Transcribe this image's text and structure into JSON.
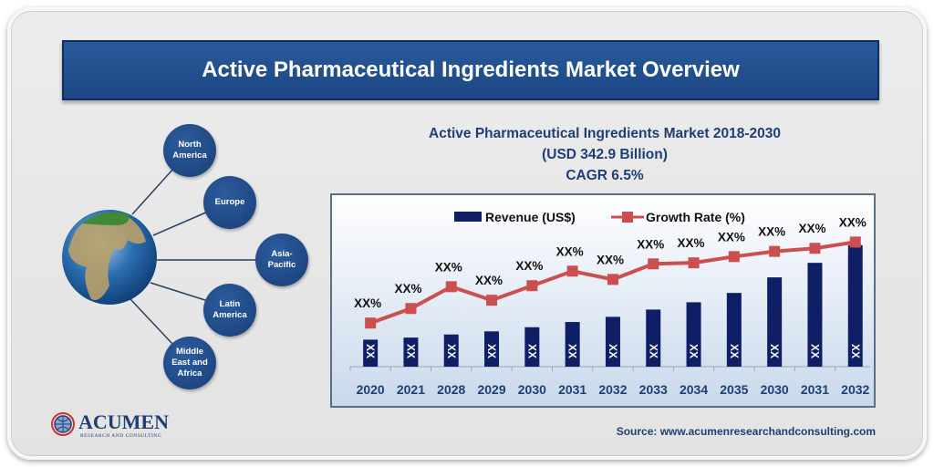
{
  "banner_title": "Active Pharmaceutical Ingredients Market Overview",
  "chart_heading": {
    "line1": "Active Pharmaceutical Ingredients Market 2018-2030",
    "line2": "(USD 342.9 Billion)",
    "line3": "CAGR 6.5%"
  },
  "regions": [
    "North America",
    "Europe",
    "Asia-Pacific",
    "Latin America",
    "Middle East and Africa"
  ],
  "logo": {
    "name": "ACUMEN",
    "tagline": "RESEARCH AND CONSULTING"
  },
  "source": "Source: www.acumenresearchandconsulting.com",
  "colors": {
    "bar": "#0f1f66",
    "line": "#cc4f4f",
    "banner": "#1f4e8c",
    "text": "#1f3f73"
  },
  "chart_data": {
    "type": "bar+line",
    "categories": [
      "2020",
      "2021",
      "2028",
      "2029",
      "2030",
      "2031",
      "2032",
      "2033",
      "2034",
      "2035",
      "2030",
      "2031",
      "2032"
    ],
    "series": [
      {
        "name": "Revenue (US$)",
        "type": "bar",
        "values": [
          26,
          28,
          31,
          34,
          38,
          43,
          48,
          55,
          62,
          71,
          86,
          100,
          117
        ],
        "labels": [
          "XX",
          "XX",
          "XX",
          "XX",
          "XX",
          "XX",
          "XX",
          "XX",
          "XX",
          "XX",
          "XX",
          "XX",
          "XX"
        ]
      },
      {
        "name": "Growth Rate (%)",
        "type": "line",
        "values": [
          42,
          56,
          77,
          64,
          78,
          92,
          84,
          99,
          100,
          106,
          111,
          114,
          120
        ],
        "labels": [
          "XX%",
          "XX%",
          "XX%",
          "XX%",
          "XX%",
          "XX%",
          "XX%",
          "XX%",
          "XX%",
          "XX%",
          "XX%",
          "XX%",
          "XX%"
        ]
      }
    ],
    "ylim": [
      0,
      130
    ],
    "yaxis_labels_visible": false,
    "grid": false,
    "legend": "top"
  }
}
